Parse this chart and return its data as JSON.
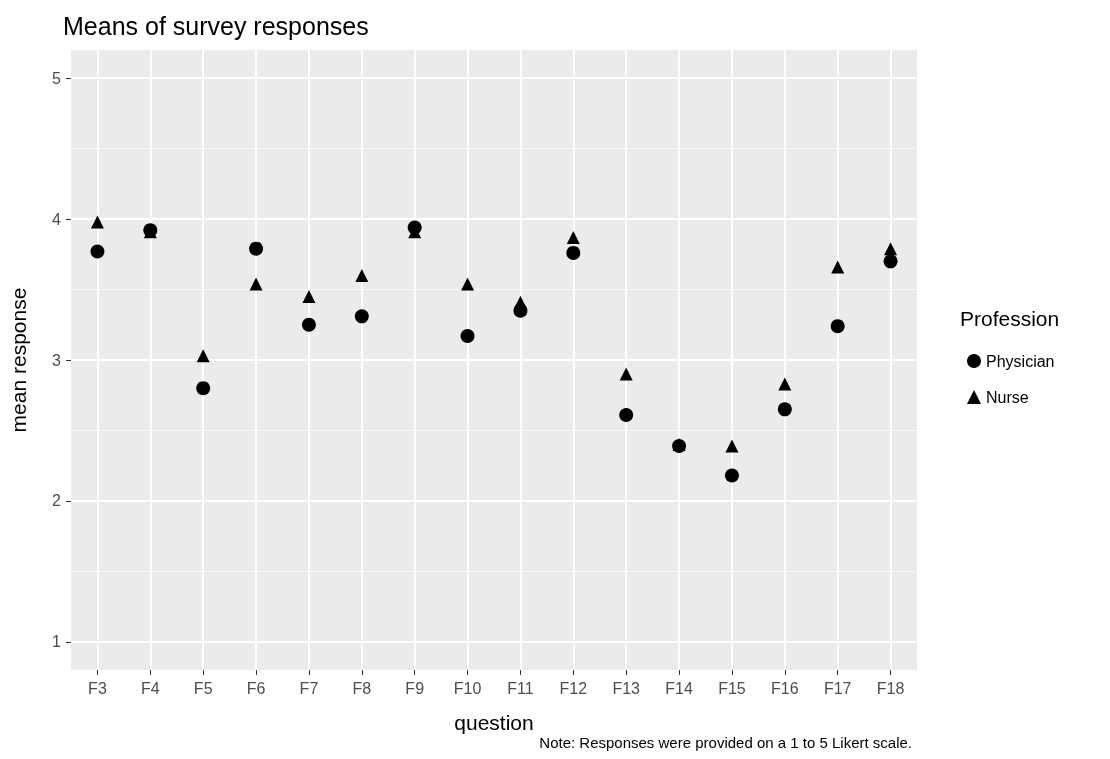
{
  "chart_data": {
    "type": "scatter",
    "title": "Means of survey responses",
    "xlabel": "question",
    "ylabel": "mean response",
    "legend_title": "Profession",
    "annotations": [
      "Note: Responses were provided on a 1 to 5 Likert scale."
    ],
    "categories": [
      "F3",
      "F4",
      "F5",
      "F6",
      "F7",
      "F8",
      "F9",
      "F10",
      "F11",
      "F12",
      "F13",
      "F14",
      "F15",
      "F16",
      "F17",
      "F18"
    ],
    "series": [
      {
        "name": "Physician",
        "color": "#000000",
        "marker": "circle",
        "values": [
          3.77,
          3.92,
          2.8,
          3.79,
          3.25,
          3.31,
          3.94,
          3.17,
          3.35,
          3.76,
          2.61,
          2.39,
          2.18,
          2.65,
          3.24,
          3.7
        ]
      },
      {
        "name": "Nurse",
        "color": "#000000",
        "marker": "triangle",
        "values": [
          3.98,
          3.91,
          3.03,
          3.54,
          3.45,
          3.6,
          3.91,
          3.54,
          3.41,
          3.87,
          2.9,
          2.4,
          2.39,
          2.83,
          3.66,
          3.79
        ]
      }
    ],
    "ylim": [
      0.8,
      5.2
    ],
    "yticks": [
      1,
      2,
      3,
      4,
      5
    ],
    "grid": true,
    "legend": "right"
  }
}
